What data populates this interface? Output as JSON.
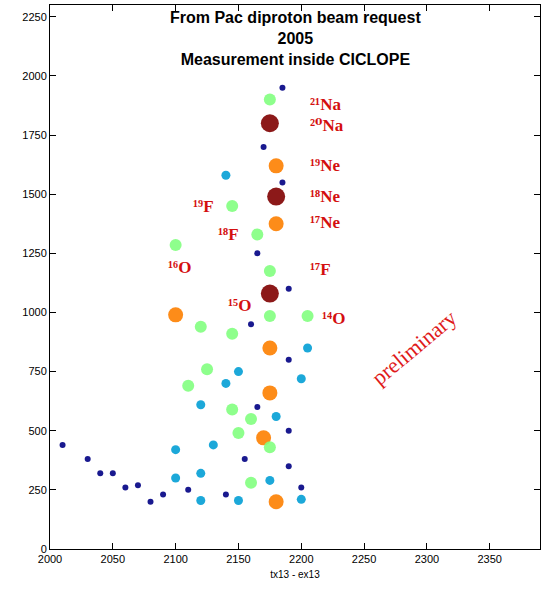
{
  "chart_data": {
    "type": "scatter",
    "title": [
      "From Pac diproton beam request",
      "2005",
      "Measurement inside CICLOPE"
    ],
    "x_label": "tx13 - ex13",
    "xlim": [
      2000,
      2390
    ],
    "xticks": [
      2000,
      2050,
      2100,
      2150,
      2200,
      2250,
      2300,
      2350
    ],
    "ylim": [
      0,
      2300
    ],
    "yticks": [
      0,
      250,
      500,
      750,
      1000,
      1250,
      1500,
      1750,
      2000,
      2250
    ],
    "grid": false,
    "marker": "circle",
    "x": [
      2175,
      2175,
      2180,
      2180,
      2180,
      2165,
      2145,
      2140,
      2100,
      2175,
      2175,
      2100,
      2120,
      2145,
      2175,
      2205,
      2175,
      2205,
      2125,
      2150,
      2110,
      2140,
      2175,
      2200,
      2120,
      2145,
      2160,
      2180,
      2150,
      2170,
      2100,
      2130,
      2175,
      2100,
      2120,
      2160,
      2175,
      2180,
      2200,
      2120,
      2150,
      2185,
      2170,
      2185,
      2165,
      2190,
      2160,
      2190,
      2165,
      2190,
      2155,
      2190,
      2010,
      2030,
      2050,
      2070,
      2090,
      2040,
      2060,
      2080,
      2110,
      2140,
      2200
    ],
    "y": [
      1900,
      1800,
      1620,
      1490,
      1375,
      1330,
      1450,
      1580,
      1285,
      1175,
      1080,
      990,
      940,
      910,
      985,
      985,
      850,
      850,
      760,
      750,
      690,
      700,
      660,
      720,
      610,
      590,
      550,
      560,
      490,
      470,
      420,
      440,
      430,
      300,
      320,
      280,
      290,
      200,
      210,
      205,
      205,
      1950,
      1700,
      1550,
      1250,
      1100,
      950,
      800,
      600,
      500,
      380,
      350,
      440,
      380,
      320,
      270,
      230,
      320,
      260,
      200,
      250,
      230,
      260
    ],
    "counts": [
      3,
      5,
      4,
      5,
      4,
      3,
      3,
      2,
      3,
      3,
      5,
      4,
      3,
      3,
      3,
      3,
      4,
      2,
      3,
      2,
      3,
      2,
      4,
      2,
      2,
      3,
      3,
      2,
      3,
      4,
      2,
      2,
      3,
      2,
      2,
      3,
      2,
      4,
      2,
      2,
      2,
      1,
      1,
      1,
      1,
      1,
      1,
      1,
      1,
      1,
      1,
      1,
      1,
      1,
      1,
      1,
      1,
      1,
      1,
      1,
      1,
      1,
      1
    ],
    "annotations": [
      {
        "text": "²¹Na",
        "x": 2205,
        "y": 1880
      },
      {
        "text": "²⁰Na",
        "x": 2205,
        "y": 1790
      },
      {
        "text": "¹⁹Ne",
        "x": 2205,
        "y": 1620
      },
      {
        "text": "¹⁸Ne",
        "x": 2205,
        "y": 1490
      },
      {
        "text": "¹⁷Ne",
        "x": 2205,
        "y": 1380
      },
      {
        "text": "¹⁷F",
        "x": 2205,
        "y": 1180
      },
      {
        "text": "¹⁹F",
        "x": 2112,
        "y": 1450
      },
      {
        "text": "¹⁸F",
        "x": 2132,
        "y": 1330
      },
      {
        "text": "¹⁶O",
        "x": 2092,
        "y": 1190
      },
      {
        "text": "¹⁵O",
        "x": 2140,
        "y": 1030
      },
      {
        "text": "¹⁴O",
        "x": 2215,
        "y": 975
      }
    ],
    "stamp": {
      "text": "preliminary",
      "x": 2290,
      "y": 850
    }
  }
}
